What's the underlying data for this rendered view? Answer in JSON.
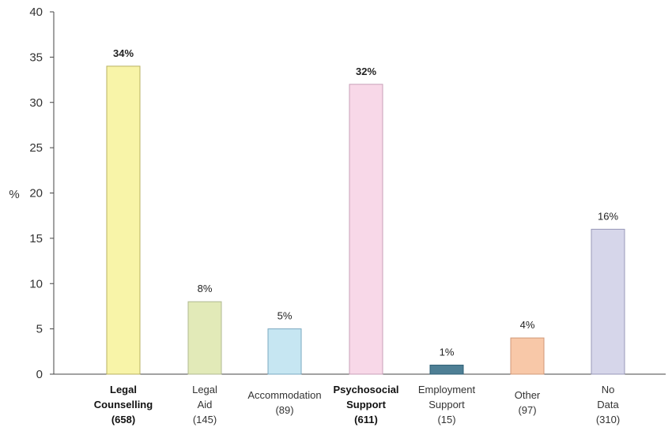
{
  "chart_data": {
    "type": "bar",
    "ylabel": "%",
    "ylim": [
      0,
      40
    ],
    "yticks": [
      0,
      5,
      10,
      15,
      20,
      25,
      30,
      35,
      40
    ],
    "grid": false,
    "categories": [
      {
        "lines": [
          "Legal",
          "Counselling",
          "(658)"
        ],
        "bold": true
      },
      {
        "lines": [
          "Legal",
          "Aid",
          "(145)"
        ],
        "bold": false
      },
      {
        "lines": [
          "Accommodation",
          "(89)"
        ],
        "bold": false
      },
      {
        "lines": [
          "Psychosocial",
          "Support",
          "(611)"
        ],
        "bold": true
      },
      {
        "lines": [
          "Employment",
          "Support",
          "(15)"
        ],
        "bold": false
      },
      {
        "lines": [
          "Other",
          "(97)"
        ],
        "bold": false
      },
      {
        "lines": [
          "No",
          "Data",
          "(310)"
        ],
        "bold": false
      }
    ],
    "values": [
      34,
      8,
      5,
      32,
      1,
      4,
      16
    ],
    "data_labels": [
      "34%",
      "8%",
      "5%",
      "32%",
      "1%",
      "4%",
      "16%"
    ],
    "colors": [
      "#f8f4a8",
      "#e2eab8",
      "#c6e6f2",
      "#f8d8e8",
      "#4e7f95",
      "#f8c8a8",
      "#d6d6ea"
    ],
    "edge_colors": [
      "#b8b060",
      "#b0b890",
      "#7aa8c0",
      "#c8a0b8",
      "#2e5f75",
      "#d09878",
      "#9898b8"
    ]
  }
}
